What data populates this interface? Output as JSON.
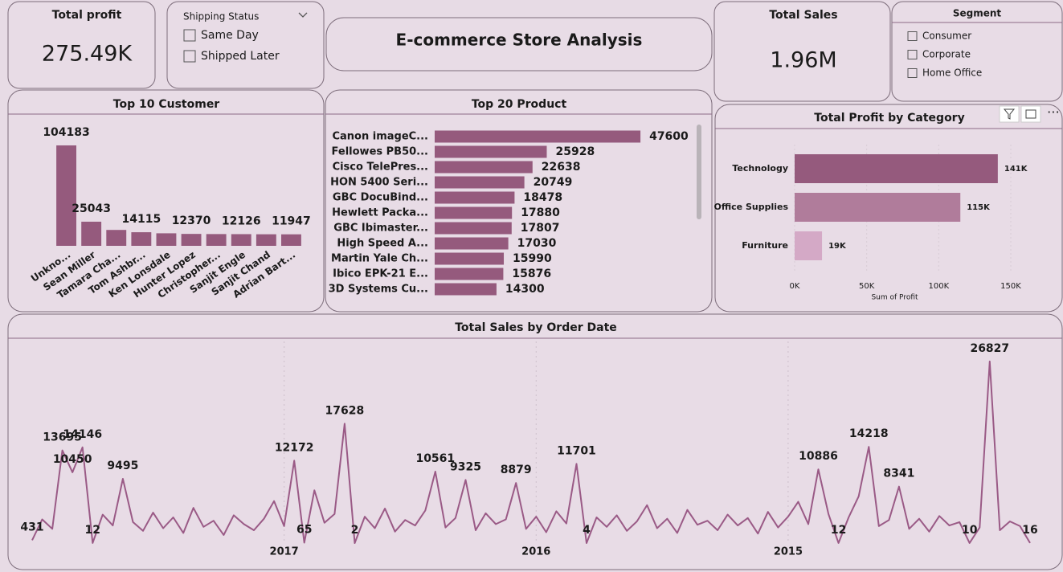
{
  "title": "E-commerce Store Analysis",
  "cards": [
    {
      "label": "Total profit",
      "value": "275.49K"
    },
    {
      "label": "Total Sales",
      "value": "1.96M"
    }
  ],
  "slicers": [
    {
      "title": "Shipping Status",
      "options": [
        "Same Day",
        "Shipped Later"
      ]
    },
    {
      "title": "Segment",
      "options": [
        "Consumer",
        "Corporate",
        "Home Office"
      ]
    }
  ],
  "chart_data": [
    {
      "type": "bar",
      "title": "Top 10 Customer",
      "categories": [
        "Unkno...",
        "Sean Miller",
        "Tamara Cha...",
        "Tom Ashbr...",
        "Ken Lonsdale",
        "Hunter Lopez",
        "Christopher...",
        "Sanjit Engle",
        "Sanjit Chand",
        "Adrian Bart..."
      ],
      "values": [
        104183,
        25043,
        16500,
        14115,
        13000,
        12370,
        12200,
        12126,
        12000,
        11947
      ],
      "value_labels": [
        "104183",
        "25043",
        null,
        "14115",
        null,
        "12370",
        null,
        "12126",
        null,
        "11947"
      ],
      "color": "#955a7d",
      "ylim": [
        0,
        110000
      ]
    },
    {
      "type": "hbar",
      "title": "Top 20 Product",
      "categories": [
        "Canon imageC...",
        "Fellowes PB50...",
        "Cisco TelePres...",
        "HON 5400 Seri...",
        "GBC DocuBind...",
        "Hewlett Packa...",
        "GBC Ibimaster...",
        "High Speed A...",
        "Martin Yale Ch...",
        "Ibico EPK-21 E...",
        "3D Systems Cu..."
      ],
      "values": [
        47600,
        25928,
        22638,
        20749,
        18478,
        17880,
        17807,
        17030,
        15990,
        15876,
        14300
      ],
      "color": "#955a7d",
      "xlim": [
        0,
        50000
      ]
    },
    {
      "type": "hbar",
      "title": "Total Profit by Category",
      "categories": [
        "Technology",
        "Office Supplies",
        "Furniture"
      ],
      "values": [
        141000,
        115000,
        19000
      ],
      "value_labels": [
        "141K",
        "115K",
        "19K"
      ],
      "colors": [
        "#955a7d",
        "#b07c9b",
        "#d4a9c6"
      ],
      "xlim": [
        0,
        150000
      ],
      "xticks": [
        {
          "value": 0,
          "label": "0K"
        },
        {
          "value": 50000,
          "label": "50K"
        },
        {
          "value": 100000,
          "label": "100K"
        },
        {
          "value": 150000,
          "label": "150K"
        }
      ],
      "xlabel": "Sum of Profit",
      "grid": true
    },
    {
      "type": "line",
      "title": "Total Sales by Order Date",
      "categories": [
        null,
        null,
        null,
        null,
        null,
        null,
        null,
        null,
        null,
        null,
        null,
        null,
        null,
        null,
        null,
        null,
        null,
        null,
        null,
        null,
        null,
        null,
        null,
        null,
        null,
        "2017",
        null,
        null,
        null,
        null,
        null,
        null,
        null,
        null,
        null,
        null,
        null,
        null,
        null,
        null,
        null,
        null,
        null,
        null,
        null,
        null,
        null,
        null,
        null,
        null,
        "2016",
        null,
        null,
        null,
        null,
        null,
        null,
        null,
        null,
        null,
        null,
        null,
        null,
        null,
        null,
        null,
        null,
        null,
        null,
        null,
        null,
        null,
        null,
        null,
        null,
        "2015",
        null,
        null,
        null,
        null,
        null,
        null,
        null,
        null,
        null,
        null,
        null,
        null,
        null,
        null,
        null,
        null,
        null,
        null,
        null,
        null,
        null,
        null,
        null,
        null
      ],
      "values": [
        431,
        3500,
        2100,
        13695,
        10450,
        14146,
        12,
        4200,
        2600,
        9495,
        3100,
        1800,
        4500,
        2200,
        3800,
        1500,
        5200,
        2400,
        3300,
        1200,
        4100,
        2800,
        1900,
        3600,
        6200,
        2500,
        12172,
        65,
        7800,
        3000,
        4300,
        17628,
        2,
        3900,
        2200,
        5100,
        1700,
        3400,
        2600,
        4800,
        10561,
        2300,
        3700,
        9325,
        1900,
        4400,
        2800,
        3500,
        8879,
        2100,
        3900,
        1600,
        4700,
        2900,
        11701,
        4,
        3800,
        2400,
        4100,
        1800,
        3200,
        5600,
        2200,
        3600,
        1500,
        4900,
        2700,
        3300,
        1900,
        4200,
        2600,
        3700,
        1400,
        4600,
        2300,
        3900,
        6100,
        2800,
        10886,
        4300,
        12,
        3800,
        6900,
        14218,
        2500,
        3400,
        8341,
        2100,
        3600,
        1700,
        4000,
        2600,
        3100,
        10,
        2300,
        26827,
        1900,
        3200,
        2500,
        16
      ],
      "value_labels": [
        "431",
        null,
        null,
        "13695",
        "10450",
        "14146",
        "12",
        null,
        null,
        "9495",
        null,
        null,
        null,
        null,
        null,
        null,
        null,
        null,
        null,
        null,
        null,
        null,
        null,
        null,
        null,
        null,
        "12172",
        "65",
        null,
        null,
        null,
        "17628",
        "2",
        null,
        null,
        null,
        null,
        null,
        null,
        null,
        "10561",
        null,
        null,
        "9325",
        null,
        null,
        null,
        null,
        "8879",
        null,
        null,
        null,
        null,
        null,
        "11701",
        "4",
        null,
        null,
        null,
        null,
        null,
        null,
        null,
        null,
        null,
        null,
        null,
        null,
        null,
        null,
        null,
        null,
        null,
        null,
        null,
        null,
        null,
        null,
        "10886",
        null,
        "12",
        null,
        null,
        "14218",
        null,
        null,
        "8341",
        null,
        null,
        null,
        null,
        null,
        null,
        "10",
        null,
        "26827",
        null,
        null,
        null,
        "16"
      ],
      "color": "#9a5a86",
      "ylim": [
        0,
        28000
      ]
    }
  ]
}
